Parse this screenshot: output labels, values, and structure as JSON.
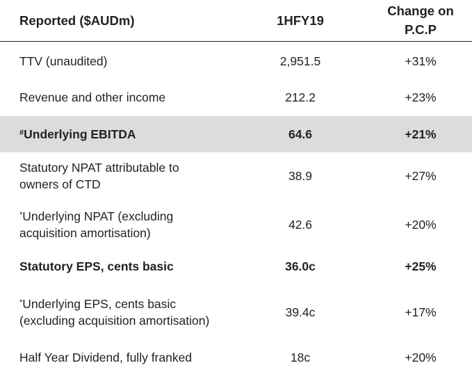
{
  "header": {
    "label": "Reported ($AUDm)",
    "period": "1HFY19",
    "change_line1": "Change on",
    "change_line2": "P.C.P"
  },
  "rows": [
    {
      "label": "TTV (unaudited)",
      "value": "2,951.5",
      "change": "+31%"
    },
    {
      "label": "Revenue and other income",
      "value": "212.2",
      "change": "+23%"
    },
    {
      "marker": "#",
      "label": "Underlying EBITDA",
      "value": "64.6",
      "change": "+21%"
    },
    {
      "label_line1": "Statutory NPAT attributable to",
      "label_line2": "owners of CTD",
      "value": "38.9",
      "change": "+27%"
    },
    {
      "marker": "*",
      "label_line1": "Underlying NPAT (excluding",
      "label_line2": "acquisition amortisation)",
      "value": "42.6",
      "change": "+20%"
    },
    {
      "label": "Statutory EPS, cents basic",
      "value": "36.0c",
      "change": "+25%"
    },
    {
      "marker": "*",
      "label_line1": "Underlying EPS, cents basic",
      "label_line2": "(excluding acquisition amortisation)",
      "value": "39.4c",
      "change": "+17%"
    },
    {
      "label": "Half Year Dividend, fully franked",
      "value": "18c",
      "change": "+20%"
    }
  ]
}
